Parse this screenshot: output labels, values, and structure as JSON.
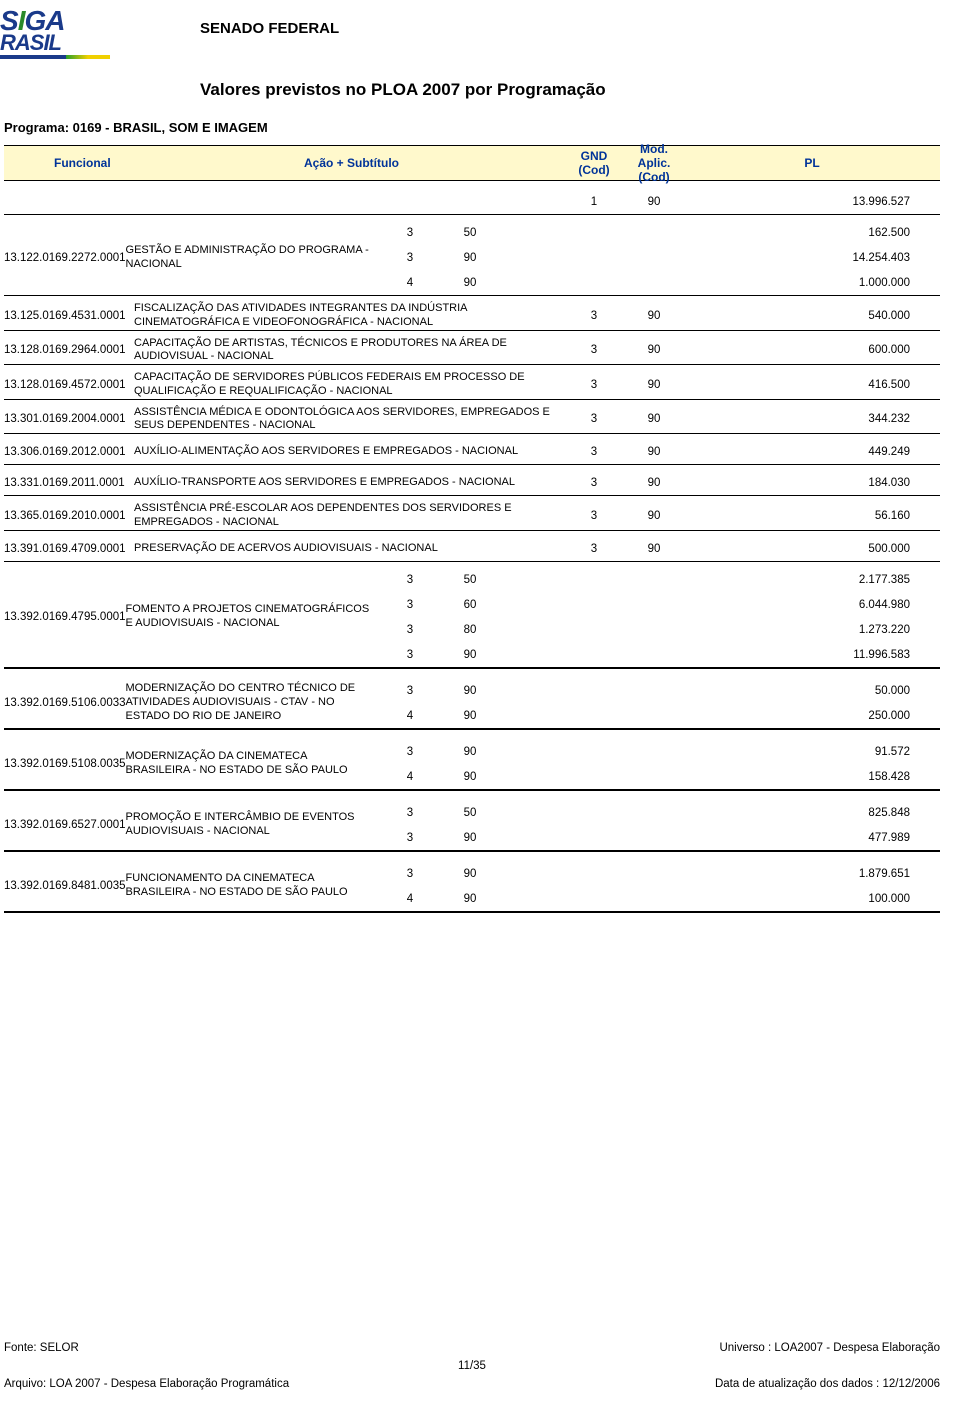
{
  "header": {
    "logo_top": "SIGA",
    "logo_bottom": "RASIL",
    "senado": "SENADO FEDERAL",
    "title": "Valores previstos no PLOA 2007 por Programação",
    "programa": "Programa: 0169 - BRASIL, SOM E IMAGEM"
  },
  "columns": {
    "funcional": "Funcional",
    "acao": "Ação + Subtítulo",
    "gnd": "GND (Cod)",
    "mod": "Mod. Aplic. (Cod)",
    "pl": "PL"
  },
  "colors": {
    "header_bg": "#fff9cc",
    "header_text": "#003399",
    "text": "#000000"
  },
  "rows": [
    {
      "funcional": "",
      "acao": "",
      "vals": [
        [
          "1",
          "90",
          "13.996.527"
        ]
      ],
      "sepBefore": "none",
      "sepAfter": "med"
    },
    {
      "funcional": "13.122.0169.2272.0001",
      "acao": "GESTÃO E ADMINISTRAÇÃO DO PROGRAMA - NACIONAL",
      "vals": [
        [
          "3",
          "50",
          "162.500"
        ],
        [
          "3",
          "90",
          "14.254.403"
        ],
        [
          "4",
          "90",
          "1.000.000"
        ]
      ],
      "sepBefore": "none",
      "innerSeps": [
        "thin",
        "thin"
      ],
      "sepAfter": "med"
    },
    {
      "funcional": "13.125.0169.4531.0001",
      "acao": "FISCALIZAÇÃO DAS ATIVIDADES INTEGRANTES DA INDÚSTRIA CINEMATOGRÁFICA E VIDEOFONOGRÁFICA - NACIONAL",
      "vals": [
        [
          "3",
          "90",
          "540.000"
        ]
      ],
      "sepAfter": "med"
    },
    {
      "funcional": "13.128.0169.2964.0001",
      "acao": "CAPACITAÇÃO DE ARTISTAS, TÉCNICOS E PRODUTORES NA ÁREA DE AUDIOVISUAL - NACIONAL",
      "vals": [
        [
          "3",
          "90",
          "600.000"
        ]
      ],
      "sepAfter": "med"
    },
    {
      "funcional": "13.128.0169.4572.0001",
      "acao": "CAPACITAÇÃO DE SERVIDORES PÚBLICOS FEDERAIS EM PROCESSO DE QUALIFICAÇÃO E REQUALIFICAÇÃO - NACIONAL",
      "vals": [
        [
          "3",
          "90",
          "416.500"
        ]
      ],
      "sepAfter": "med"
    },
    {
      "funcional": "13.301.0169.2004.0001",
      "acao": "ASSISTÊNCIA MÉDICA E ODONTOLÓGICA AOS SERVIDORES, EMPREGADOS E SEUS DEPENDENTES - NACIONAL",
      "vals": [
        [
          "3",
          "90",
          "344.232"
        ]
      ],
      "sepAfter": "med"
    },
    {
      "funcional": "13.306.0169.2012.0001",
      "acao": "AUXÍLIO-ALIMENTAÇÃO AOS SERVIDORES E EMPREGADOS - NACIONAL",
      "vals": [
        [
          "3",
          "90",
          "449.249"
        ]
      ],
      "sepAfter": "med"
    },
    {
      "funcional": "13.331.0169.2011.0001",
      "acao": "AUXÍLIO-TRANSPORTE AOS SERVIDORES E EMPREGADOS - NACIONAL",
      "vals": [
        [
          "3",
          "90",
          "184.030"
        ]
      ],
      "sepAfter": "med"
    },
    {
      "funcional": "13.365.0169.2010.0001",
      "acao": "ASSISTÊNCIA PRÉ-ESCOLAR AOS DEPENDENTES DOS SERVIDORES E EMPREGADOS - NACIONAL",
      "vals": [
        [
          "3",
          "90",
          "56.160"
        ]
      ],
      "sepAfter": "med"
    },
    {
      "funcional": "13.391.0169.4709.0001",
      "acao": "PRESERVAÇÃO DE ACERVOS AUDIOVISUAIS - NACIONAL",
      "vals": [
        [
          "3",
          "90",
          "500.000"
        ]
      ],
      "sepAfter": "med"
    },
    {
      "funcional": "13.392.0169.4795.0001",
      "acao": "FOMENTO A PROJETOS CINEMATOGRÁFICOS E AUDIOVISUAIS - NACIONAL",
      "vals": [
        [
          "3",
          "50",
          "2.177.385"
        ],
        [
          "3",
          "60",
          "6.044.980"
        ],
        [
          "3",
          "80",
          "1.273.220"
        ],
        [
          "3",
          "90",
          "11.996.583"
        ]
      ],
      "innerSeps": [
        "thin",
        "thin",
        "thin"
      ],
      "sepAfter": "thick"
    },
    {
      "funcional": "13.392.0169.5106.0033",
      "acao": "MODERNIZAÇÃO DO CENTRO TÉCNICO DE ATIVIDADES AUDIOVISUAIS - CTAV - NO ESTADO DO RIO DE JANEIRO",
      "vals": [
        [
          "3",
          "90",
          "50.000"
        ],
        [
          "4",
          "90",
          "250.000"
        ]
      ],
      "innerSeps": [
        "thin"
      ],
      "sepAfter": "thick"
    },
    {
      "funcional": "13.392.0169.5108.0035",
      "acao": "MODERNIZAÇÃO DA CINEMATECA BRASILEIRA - NO ESTADO DE SÃO PAULO",
      "vals": [
        [
          "3",
          "90",
          "91.572"
        ],
        [
          "4",
          "90",
          "158.428"
        ]
      ],
      "innerSeps": [
        "thin"
      ],
      "sepAfter": "thick"
    },
    {
      "funcional": "13.392.0169.6527.0001",
      "acao": "PROMOÇÃO E INTERCÂMBIO DE EVENTOS AUDIOVISUAIS - NACIONAL",
      "vals": [
        [
          "3",
          "50",
          "825.848"
        ],
        [
          "3",
          "90",
          "477.989"
        ]
      ],
      "innerSeps": [
        "thin"
      ],
      "sepAfter": "thick"
    },
    {
      "funcional": "13.392.0169.8481.0035",
      "acao": "FUNCIONAMENTO DA CINEMATECA BRASILEIRA - NO ESTADO DE SÃO PAULO",
      "vals": [
        [
          "3",
          "90",
          "1.879.651"
        ],
        [
          "4",
          "90",
          "100.000"
        ]
      ],
      "innerSeps": [
        "thin"
      ],
      "sepAfter": "thick"
    }
  ],
  "footer": {
    "fonte": "Fonte: SELOR",
    "universo": "Universo : LOA2007 - Despesa Elaboração",
    "page": "11/35",
    "arquivo": "Arquivo: LOA 2007 - Despesa Elaboração Programática",
    "data": "Data de atualização dos dados : 12/12/2006"
  }
}
